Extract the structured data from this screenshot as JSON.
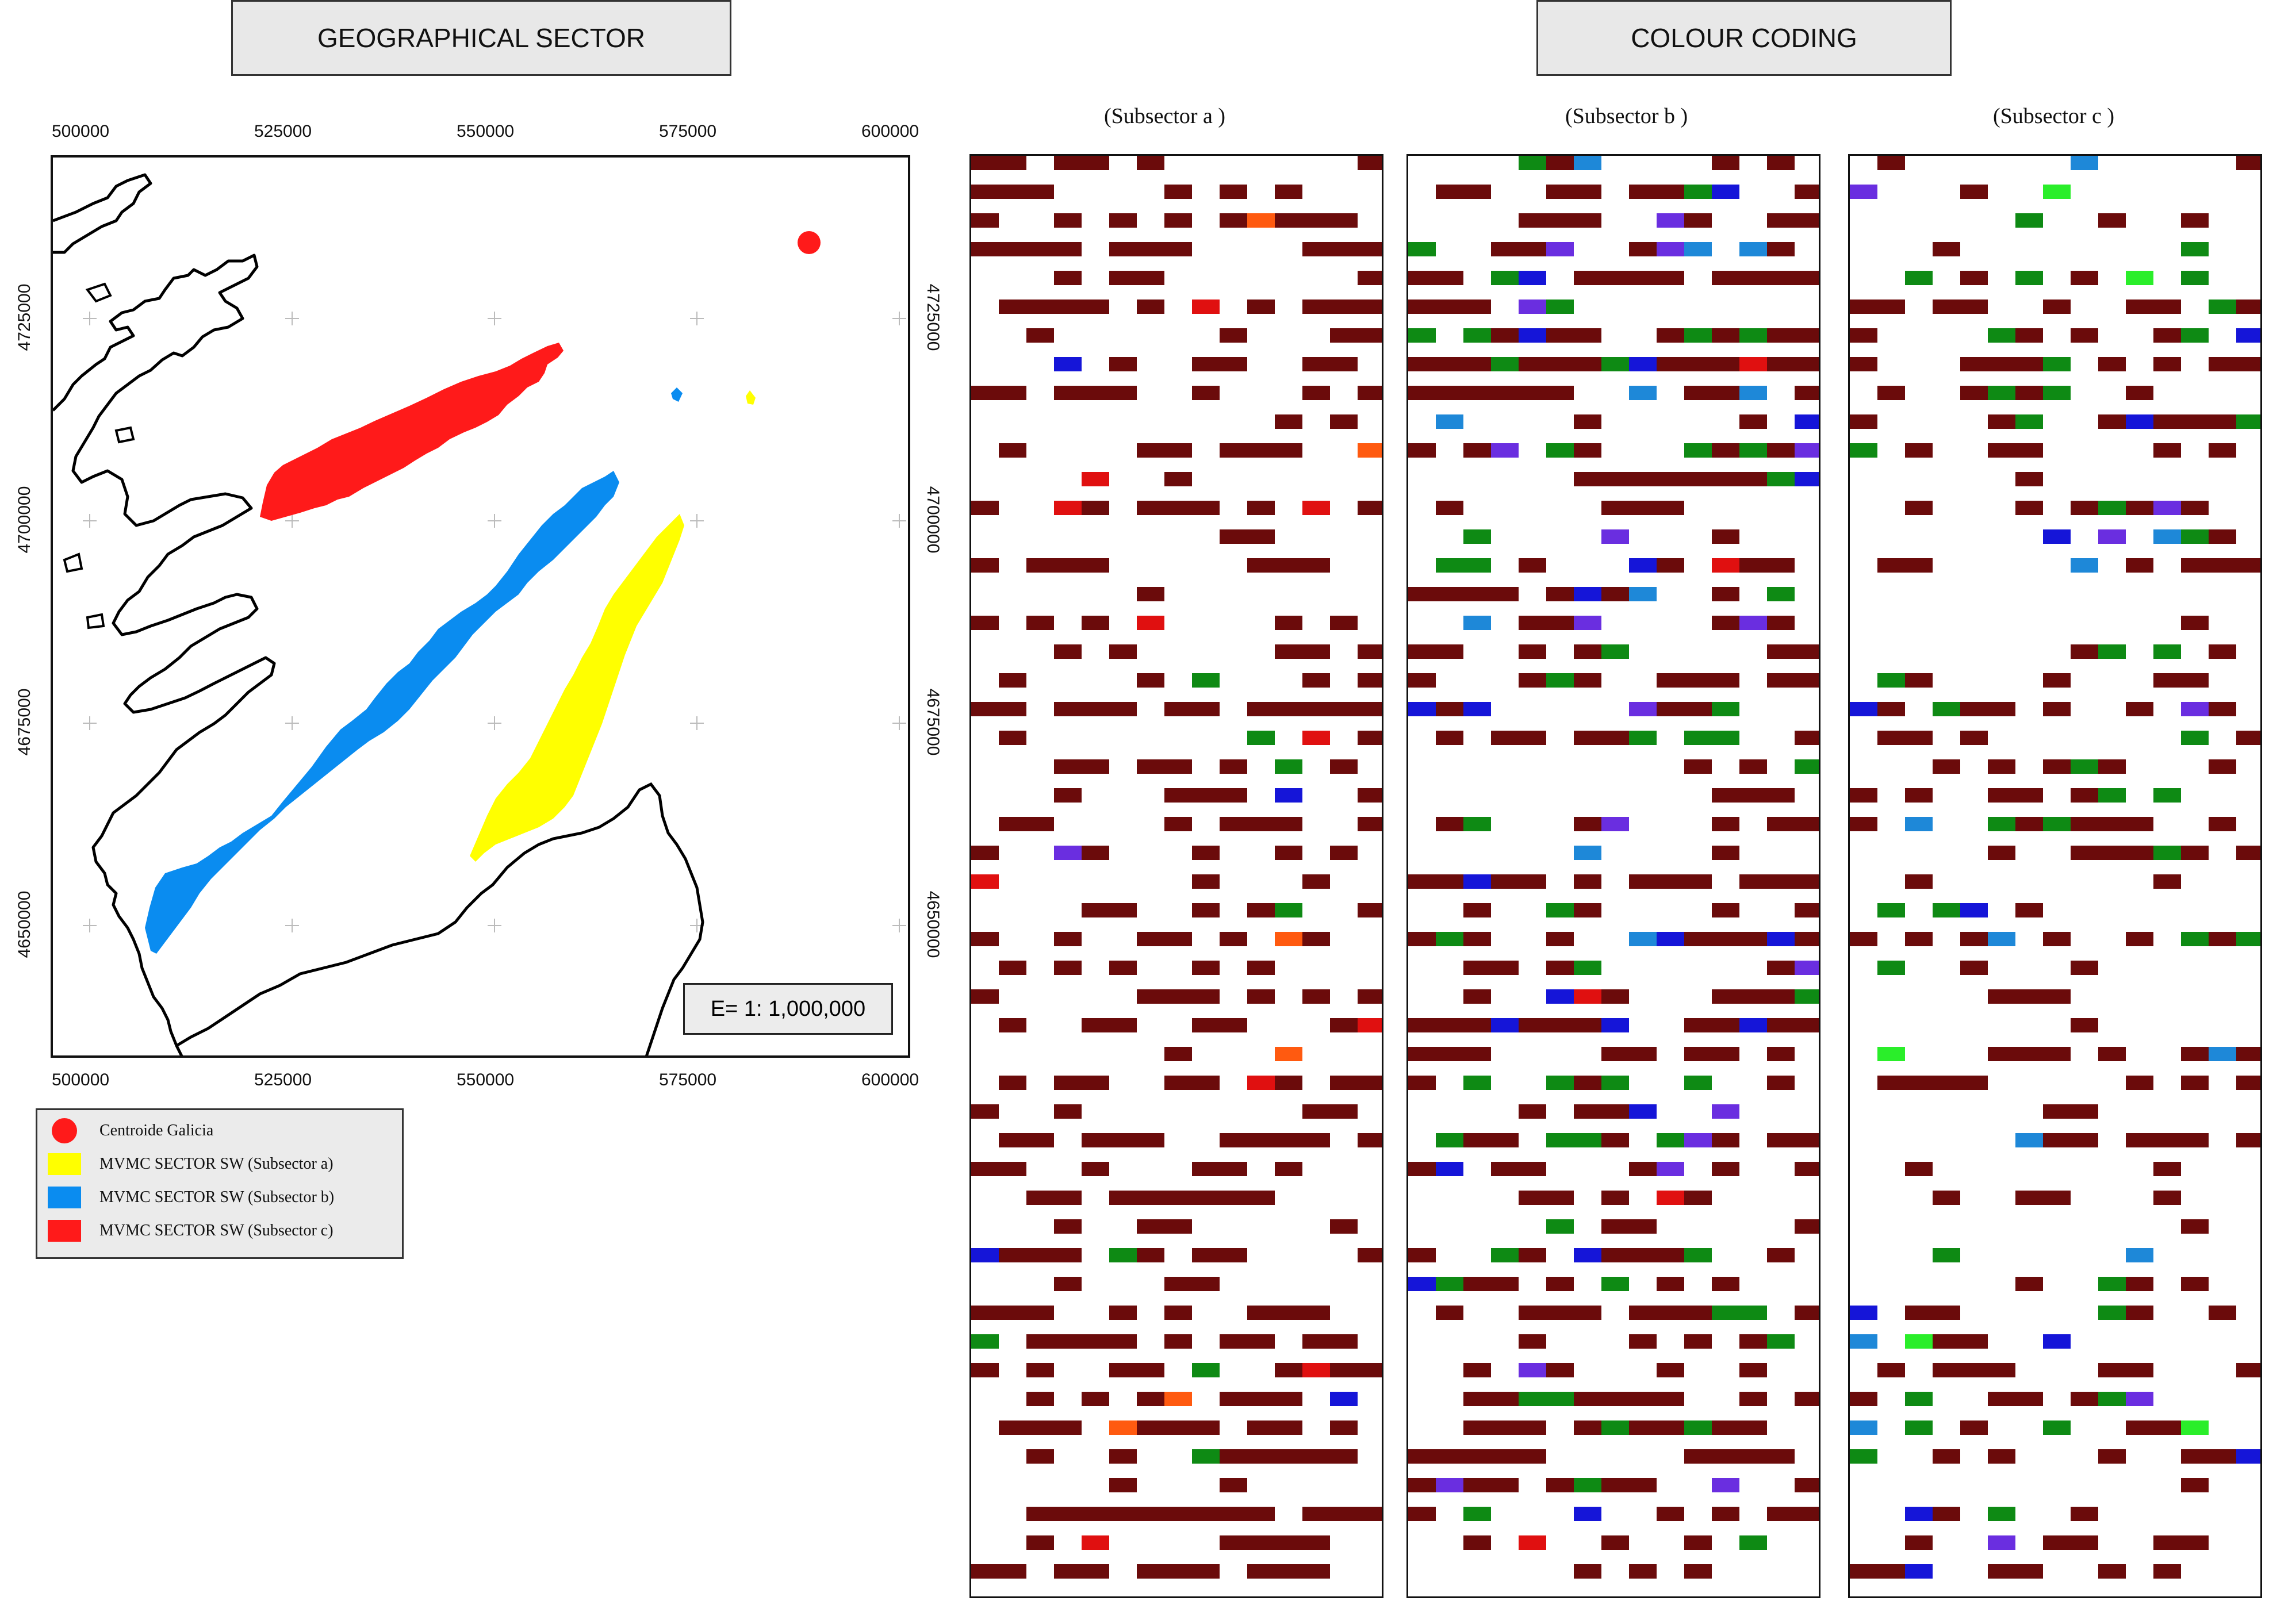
{
  "headers": {
    "geographical_sector": "GEOGRAPHICAL SECTOR",
    "colour_coding": "COLOUR CODING"
  },
  "map": {
    "x_ticks": [
      "500000",
      "525000",
      "550000",
      "575000",
      "600000"
    ],
    "y_ticks": [
      "4725000",
      "4700000",
      "4675000",
      "4650000"
    ],
    "scale": "E= 1: 1,000,000",
    "centroid_color": "#ff1a1a"
  },
  "legend": {
    "items": [
      {
        "label": "Centroide Galicia",
        "color": "#ff1a1a",
        "shape": "circle"
      },
      {
        "label": "MVMC SECTOR SW (Subsector a)",
        "color": "#ffff00",
        "shape": "rect"
      },
      {
        "label": "MVMC SECTOR SW (Subsector b)",
        "color": "#0a8cf0",
        "shape": "rect"
      },
      {
        "label": "MVMC SECTOR SW (Subsector c)",
        "color": "#ff1a1a",
        "shape": "rect"
      }
    ]
  },
  "subsectors": [
    {
      "title": "(Subsector  a )"
    },
    {
      "title": "(Subsector b )"
    },
    {
      "title": "(Subsector c )"
    }
  ],
  "palette": {
    "maroon": "#6b0b0b",
    "red": "#e01010",
    "green": "#0e8a14",
    "bright_green": "#2aee2a",
    "blue": "#1515d8",
    "light_blue": "#1e88d8",
    "purple": "#6a2ee0",
    "olive": "#8b7a10",
    "orange": "#ff5a10"
  }
}
